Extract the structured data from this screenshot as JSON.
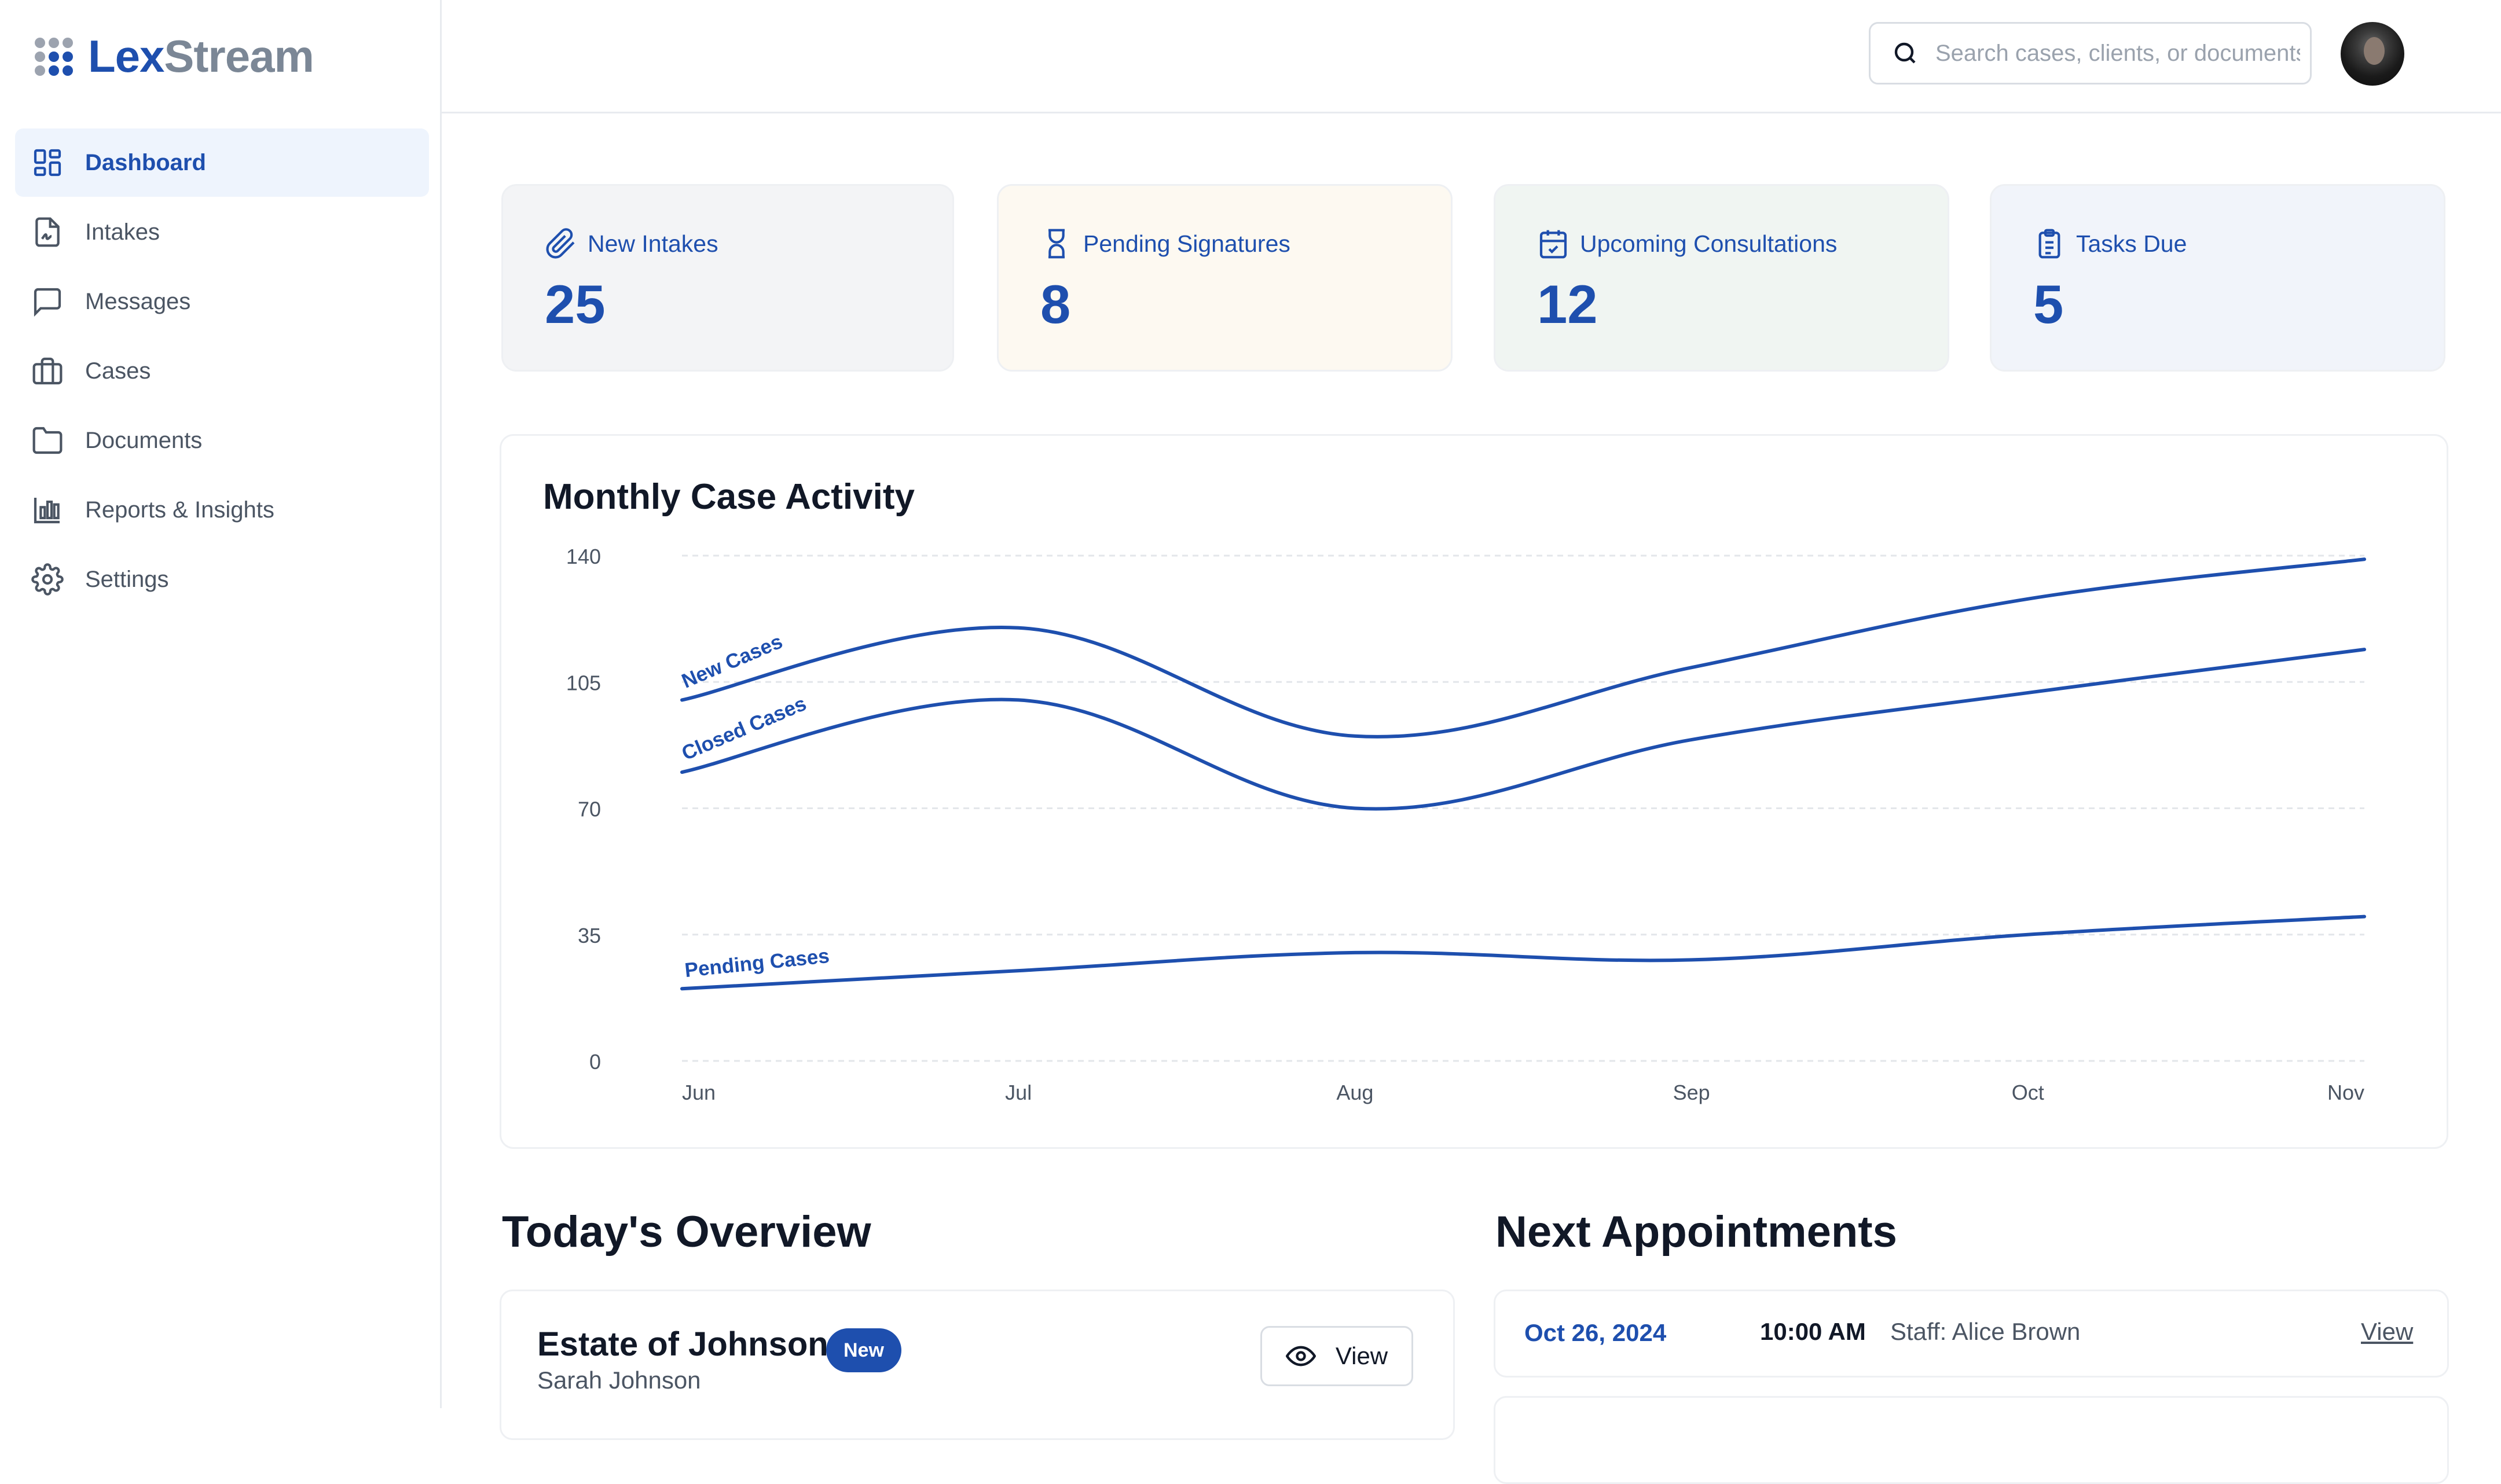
{
  "app": {
    "brand_part1": "Lex",
    "brand_part2": "Stream"
  },
  "sidebar": {
    "items": [
      {
        "label": "Dashboard",
        "icon": "dashboard-grid-icon",
        "active": true
      },
      {
        "label": "Intakes",
        "icon": "file-signature-icon"
      },
      {
        "label": "Messages",
        "icon": "message-square-icon"
      },
      {
        "label": "Cases",
        "icon": "briefcase-icon"
      },
      {
        "label": "Documents",
        "icon": "folder-icon"
      },
      {
        "label": "Reports & Insights",
        "icon": "bar-chart-icon"
      },
      {
        "label": "Settings",
        "icon": "gear-icon"
      }
    ]
  },
  "header": {
    "search_placeholder": "Search cases, clients, or documents..."
  },
  "stats": [
    {
      "label": "New Intakes",
      "value": "25",
      "icon": "paperclip-icon",
      "bg": "#f3f4f6"
    },
    {
      "label": "Pending Signatures",
      "value": "8",
      "icon": "hourglass-icon",
      "bg": "#fdf9f1"
    },
    {
      "label": "Upcoming Consultations",
      "value": "12",
      "icon": "calendar-check-icon",
      "bg": "#f0f5f2"
    },
    {
      "label": "Tasks Due",
      "value": "5",
      "icon": "clipboard-list-icon",
      "bg": "#f1f4fa"
    }
  ],
  "chart": {
    "title": "Monthly Case Activity",
    "line_color": "#1e4fae"
  },
  "chart_data": {
    "type": "line",
    "x": [
      "Jun",
      "Jul",
      "Aug",
      "Sep",
      "Oct",
      "Nov"
    ],
    "yticks": [
      0,
      35,
      70,
      105,
      140
    ],
    "ylim": [
      0,
      140
    ],
    "grid": true,
    "series": [
      {
        "name": "New Cases",
        "values": [
          100,
          120,
          90,
          109,
          128,
          139
        ]
      },
      {
        "name": "Closed Cases",
        "values": [
          80,
          100,
          70,
          89,
          102,
          114
        ]
      },
      {
        "name": "Pending Cases",
        "values": [
          20,
          25,
          30,
          28,
          35,
          40
        ]
      }
    ]
  },
  "overview": {
    "title": "Today's Overview",
    "items": [
      {
        "title": "Estate of Johnson",
        "badge": "New",
        "client": "Sarah Johnson",
        "action": "View"
      }
    ]
  },
  "appointments": {
    "title": "Next Appointments",
    "items": [
      {
        "date": "Oct 26, 2024",
        "time": "10:00 AM",
        "staff": "Staff: Alice Brown",
        "action": "View"
      }
    ]
  }
}
